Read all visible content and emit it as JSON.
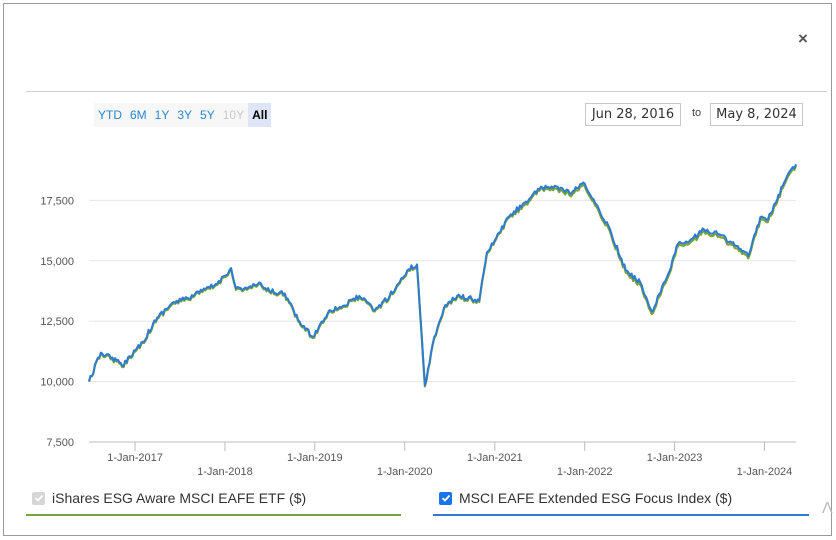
{
  "close_label": "×",
  "range_buttons": [
    {
      "label": "YTD",
      "state": "normal"
    },
    {
      "label": "6M",
      "state": "normal"
    },
    {
      "label": "1Y",
      "state": "normal"
    },
    {
      "label": "3Y",
      "state": "normal"
    },
    {
      "label": "5Y",
      "state": "normal"
    },
    {
      "label": "10Y",
      "state": "disabled"
    },
    {
      "label": "All",
      "state": "active"
    }
  ],
  "date_from": "Jun 28, 2016",
  "date_to_label": "to",
  "date_to": "May 8, 2024",
  "legend": [
    {
      "label": "iShares ESG Aware MSCI EAFE ETF ($)",
      "checked": true,
      "enabled": false,
      "color": "#7aa33a"
    },
    {
      "label": "MSCI EAFE Extended ESG Focus Index ($)",
      "checked": true,
      "enabled": true,
      "color": "#2f7bd0"
    }
  ],
  "chart_data": {
    "type": "line",
    "title": "",
    "xlabel": "",
    "ylabel": "",
    "ylim": [
      7500,
      20000
    ],
    "yticks": [
      7500,
      10000,
      12500,
      15000,
      17500
    ],
    "ytick_labels": [
      "7,500",
      "10,000",
      "12,500",
      "15,000",
      "17,500"
    ],
    "xticks": [
      "1-Jan-2017",
      "1-Jan-2018",
      "1-Jan-2019",
      "1-Jan-2020",
      "1-Jan-2021",
      "1-Jan-2022",
      "1-Jan-2023",
      "1-Jan-2024"
    ],
    "grid": true,
    "x": [
      "2016-06-28",
      "2016-08-15",
      "2016-10-01",
      "2016-11-10",
      "2016-12-10",
      "2017-02-01",
      "2017-04-01",
      "2017-06-01",
      "2017-08-01",
      "2017-10-01",
      "2017-12-01",
      "2018-01-26",
      "2018-02-15",
      "2018-04-01",
      "2018-05-15",
      "2018-07-01",
      "2018-09-01",
      "2018-10-25",
      "2018-12-24",
      "2019-03-01",
      "2019-05-01",
      "2019-07-01",
      "2019-09-01",
      "2019-11-01",
      "2020-01-17",
      "2020-02-20",
      "2020-03-23",
      "2020-04-30",
      "2020-06-08",
      "2020-08-01",
      "2020-10-30",
      "2020-11-30",
      "2021-01-01",
      "2021-03-01",
      "2021-05-01",
      "2021-07-01",
      "2021-09-01",
      "2021-11-01",
      "2022-01-01",
      "2022-03-08",
      "2022-04-01",
      "2022-06-17",
      "2022-08-15",
      "2022-09-30",
      "2022-11-30",
      "2023-01-15",
      "2023-03-01",
      "2023-05-01",
      "2023-07-01",
      "2023-08-15",
      "2023-10-27",
      "2023-12-15",
      "2024-01-15",
      "2024-02-15",
      "2024-03-15",
      "2024-04-19",
      "2024-05-08"
    ],
    "series": [
      {
        "name": "iShares ESG Aware MSCI EAFE ETF ($)",
        "values": [
          10000,
          11150,
          10950,
          10600,
          11000,
          11600,
          12600,
          13200,
          13400,
          13700,
          14000,
          14650,
          13800,
          13800,
          14000,
          13700,
          13600,
          12500,
          11800,
          12900,
          13100,
          13500,
          12900,
          13500,
          14600,
          14800,
          9800,
          11800,
          13000,
          13500,
          13300,
          15300,
          15800,
          16800,
          17300,
          17900,
          18000,
          17700,
          18100,
          16800,
          16500,
          14500,
          14000,
          12800,
          14200,
          15600,
          15700,
          16200,
          16000,
          15700,
          15100,
          16700,
          16600,
          17300,
          18000,
          18700,
          18950
        ]
      },
      {
        "name": "MSCI EAFE Extended ESG Focus Index ($)",
        "values": [
          10000,
          11200,
          11000,
          10650,
          11050,
          11650,
          12650,
          13250,
          13450,
          13750,
          14050,
          14700,
          13850,
          13850,
          14050,
          13750,
          13650,
          12550,
          11850,
          12950,
          13150,
          13550,
          12950,
          13550,
          14650,
          14850,
          9850,
          11850,
          13050,
          13550,
          13350,
          15350,
          15850,
          16850,
          17400,
          17950,
          18100,
          17800,
          18200,
          16900,
          16600,
          14600,
          14100,
          12900,
          14300,
          15700,
          15800,
          16300,
          16100,
          15800,
          15200,
          16800,
          16700,
          17400,
          18100,
          18800,
          19000
        ]
      }
    ]
  }
}
